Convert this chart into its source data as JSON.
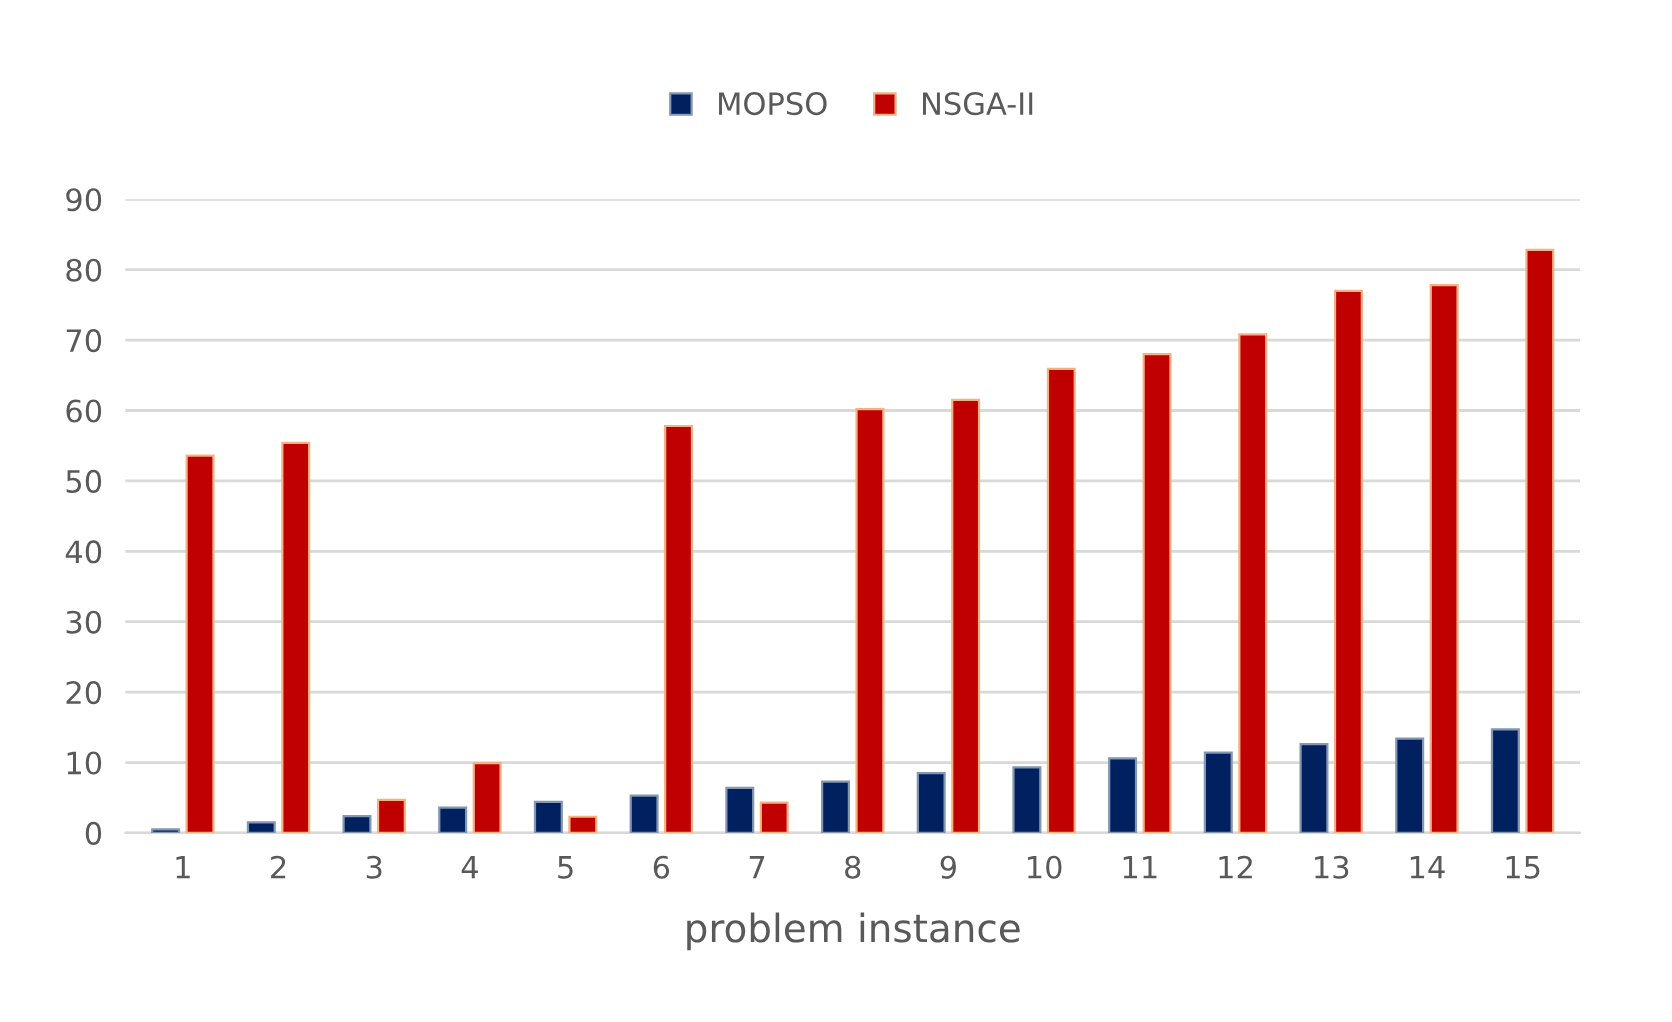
{
  "chart_data": {
    "type": "bar",
    "xlabel": "problem instance",
    "categories": [
      "1",
      "2",
      "3",
      "4",
      "5",
      "6",
      "7",
      "8",
      "9",
      "10",
      "11",
      "12",
      "13",
      "14",
      "15"
    ],
    "series": [
      {
        "name": "MOPSO",
        "color": "#002060",
        "values": [
          0.5,
          1.5,
          2.4,
          3.6,
          4.4,
          5.3,
          6.4,
          7.3,
          8.5,
          9.3,
          10.6,
          11.4,
          12.6,
          13.4,
          14.7
        ]
      },
      {
        "name": "NSGA-II",
        "color": "#c00000",
        "values": [
          53.6,
          55.4,
          4.7,
          9.9,
          2.3,
          57.8,
          4.3,
          60.2,
          61.5,
          65.9,
          68,
          70.8,
          77,
          77.8,
          82.8
        ]
      }
    ],
    "ylim": [
      0,
      90
    ],
    "yticks": [
      0,
      10,
      20,
      30,
      40,
      50,
      60,
      70,
      80,
      90
    ],
    "grid": "y",
    "legend": "top"
  }
}
